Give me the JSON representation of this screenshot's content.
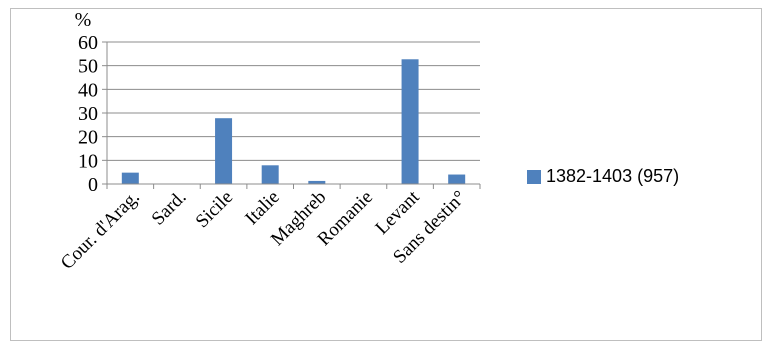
{
  "chart_data": {
    "type": "bar",
    "ylabel": "%",
    "ylim": [
      0,
      60
    ],
    "yticks": [
      0,
      10,
      20,
      30,
      40,
      50,
      60
    ],
    "categories": [
      "Cour. d'Arag.",
      "Sard.",
      "Sicile",
      "Italie",
      "Maghreb",
      "Romanie",
      "Levant",
      "Sans destin°"
    ],
    "series": [
      {
        "name": "1382-1403 (957)",
        "values": [
          4.8,
          0.2,
          27.8,
          7.9,
          1.3,
          0.2,
          52.7,
          4.0
        ],
        "color": "#4f81bd"
      }
    ],
    "grid": true,
    "legend_position": "right"
  }
}
